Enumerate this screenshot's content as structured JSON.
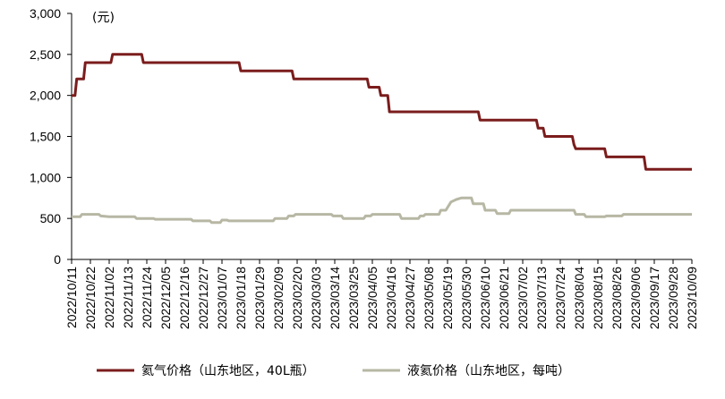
{
  "chart_data": {
    "type": "line",
    "y_unit": "(元)",
    "ylim": [
      0,
      3000
    ],
    "yticks": [
      0,
      500,
      1000,
      1500,
      2000,
      2500,
      3000
    ],
    "ytick_labels": [
      "0",
      "500",
      "1,000",
      "1,500",
      "2,000",
      "2,500",
      "3,000"
    ],
    "x_tick_labels": [
      "2022/10/11",
      "2022/10/22",
      "2022/11/02",
      "2022/11/13",
      "2022/11/24",
      "2022/12/05",
      "2022/12/16",
      "2022/12/27",
      "2023/01/07",
      "2023/01/18",
      "2023/01/29",
      "2023/02/09",
      "2023/02/20",
      "2023/03/03",
      "2023/03/14",
      "2023/03/25",
      "2023/04/05",
      "2023/04/16",
      "2023/04/27",
      "2023/05/08",
      "2023/05/19",
      "2023/05/30",
      "2023/06/10",
      "2023/06/21",
      "2023/07/02",
      "2023/07/13",
      "2023/07/24",
      "2023/08/04",
      "2023/08/15",
      "2023/08/26",
      "2023/09/06",
      "2023/09/17",
      "2023/09/28",
      "2023/10/09"
    ],
    "grid": false,
    "legend_position": "bottom",
    "series": [
      {
        "name": "氦气价格（山东地区，40L瓶）",
        "color": "#7b1c1c",
        "points": [
          [
            "2022/10/11",
            2000
          ],
          [
            "2022/10/13",
            2000
          ],
          [
            "2022/10/14",
            2200
          ],
          [
            "2022/10/18",
            2200
          ],
          [
            "2022/10/19",
            2400
          ],
          [
            "2022/11/03",
            2400
          ],
          [
            "2022/11/04",
            2500
          ],
          [
            "2022/11/21",
            2500
          ],
          [
            "2022/11/22",
            2400
          ],
          [
            "2023/01/17",
            2400
          ],
          [
            "2023/01/18",
            2300
          ],
          [
            "2023/02/17",
            2300
          ],
          [
            "2023/02/18",
            2200
          ],
          [
            "2023/04/02",
            2200
          ],
          [
            "2023/04/03",
            2100
          ],
          [
            "2023/04/09",
            2100
          ],
          [
            "2023/04/10",
            2000
          ],
          [
            "2023/04/14",
            2000
          ],
          [
            "2023/04/15",
            1800
          ],
          [
            "2023/06/06",
            1800
          ],
          [
            "2023/06/07",
            1700
          ],
          [
            "2023/07/10",
            1700
          ],
          [
            "2023/07/11",
            1600
          ],
          [
            "2023/07/14",
            1600
          ],
          [
            "2023/07/15",
            1500
          ],
          [
            "2023/07/31",
            1500
          ],
          [
            "2023/08/01",
            1400
          ],
          [
            "2023/08/02",
            1350
          ],
          [
            "2023/08/19",
            1350
          ],
          [
            "2023/08/20",
            1250
          ],
          [
            "2023/09/11",
            1250
          ],
          [
            "2023/09/12",
            1100
          ],
          [
            "2023/10/09",
            1100
          ]
        ]
      },
      {
        "name": "液氦价格（山东地区，每吨）",
        "color": "#b7b7a4",
        "points": [
          [
            "2022/10/11",
            520
          ],
          [
            "2022/10/16",
            520
          ],
          [
            "2022/10/17",
            550
          ],
          [
            "2022/10/27",
            550
          ],
          [
            "2022/10/28",
            530
          ],
          [
            "2022/11/02",
            520
          ],
          [
            "2022/11/17",
            520
          ],
          [
            "2022/11/18",
            500
          ],
          [
            "2022/11/28",
            500
          ],
          [
            "2022/11/29",
            490
          ],
          [
            "2022/12/20",
            490
          ],
          [
            "2022/12/21",
            470
          ],
          [
            "2022/12/31",
            470
          ],
          [
            "2023/01/01",
            450
          ],
          [
            "2023/01/06",
            450
          ],
          [
            "2023/01/07",
            480
          ],
          [
            "2023/01/10",
            480
          ],
          [
            "2023/01/11",
            470
          ],
          [
            "2023/02/06",
            470
          ],
          [
            "2023/02/07",
            500
          ],
          [
            "2023/02/14",
            500
          ],
          [
            "2023/02/15",
            530
          ],
          [
            "2023/02/18",
            530
          ],
          [
            "2023/02/19",
            550
          ],
          [
            "2023/03/12",
            550
          ],
          [
            "2023/03/13",
            530
          ],
          [
            "2023/03/18",
            530
          ],
          [
            "2023/03/19",
            500
          ],
          [
            "2023/03/31",
            500
          ],
          [
            "2023/04/01",
            530
          ],
          [
            "2023/04/04",
            530
          ],
          [
            "2023/04/05",
            550
          ],
          [
            "2023/04/21",
            550
          ],
          [
            "2023/04/22",
            500
          ],
          [
            "2023/05/02",
            500
          ],
          [
            "2023/05/03",
            530
          ],
          [
            "2023/05/05",
            530
          ],
          [
            "2023/05/06",
            550
          ],
          [
            "2023/05/14",
            550
          ],
          [
            "2023/05/15",
            600
          ],
          [
            "2023/05/18",
            600
          ],
          [
            "2023/05/21",
            700
          ],
          [
            "2023/05/24",
            730
          ],
          [
            "2023/05/27",
            750
          ],
          [
            "2023/06/02",
            750
          ],
          [
            "2023/06/03",
            680
          ],
          [
            "2023/06/09",
            680
          ],
          [
            "2023/06/10",
            600
          ],
          [
            "2023/06/16",
            600
          ],
          [
            "2023/06/17",
            560
          ],
          [
            "2023/06/24",
            560
          ],
          [
            "2023/06/25",
            600
          ],
          [
            "2023/08/01",
            600
          ],
          [
            "2023/08/02",
            550
          ],
          [
            "2023/08/07",
            550
          ],
          [
            "2023/08/08",
            520
          ],
          [
            "2023/08/19",
            520
          ],
          [
            "2023/08/20",
            530
          ],
          [
            "2023/08/29",
            530
          ],
          [
            "2023/08/30",
            550
          ],
          [
            "2023/10/09",
            550
          ]
        ]
      }
    ]
  }
}
